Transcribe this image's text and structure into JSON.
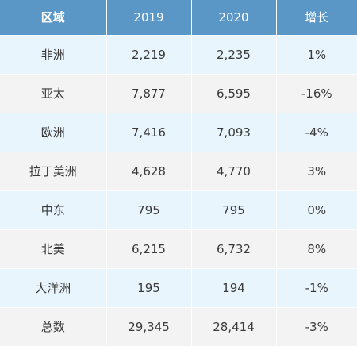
{
  "table": {
    "headers": [
      "区域",
      "2019",
      "2020",
      "增长"
    ],
    "rows": [
      [
        "非洲",
        "2,219",
        "2,235",
        "1%"
      ],
      [
        "亚太",
        "7,877",
        "6,595",
        "-16%"
      ],
      [
        "欧洲",
        "7,416",
        "7,093",
        "-4%"
      ],
      [
        "拉丁美洲",
        "4,628",
        "4,770",
        "3%"
      ],
      [
        "中东",
        "795",
        "795",
        "0%"
      ],
      [
        "北美",
        "6,215",
        "6,732",
        "8%"
      ],
      [
        "大洋洲",
        "195",
        "194",
        "-1%"
      ],
      [
        "总数",
        "29,345",
        "28,414",
        "-3%"
      ]
    ]
  },
  "colors": {
    "header_bg": "#5b97c6",
    "row_odd_bg": "#e8f5fd",
    "row_even_bg": "#f3f3f3"
  }
}
